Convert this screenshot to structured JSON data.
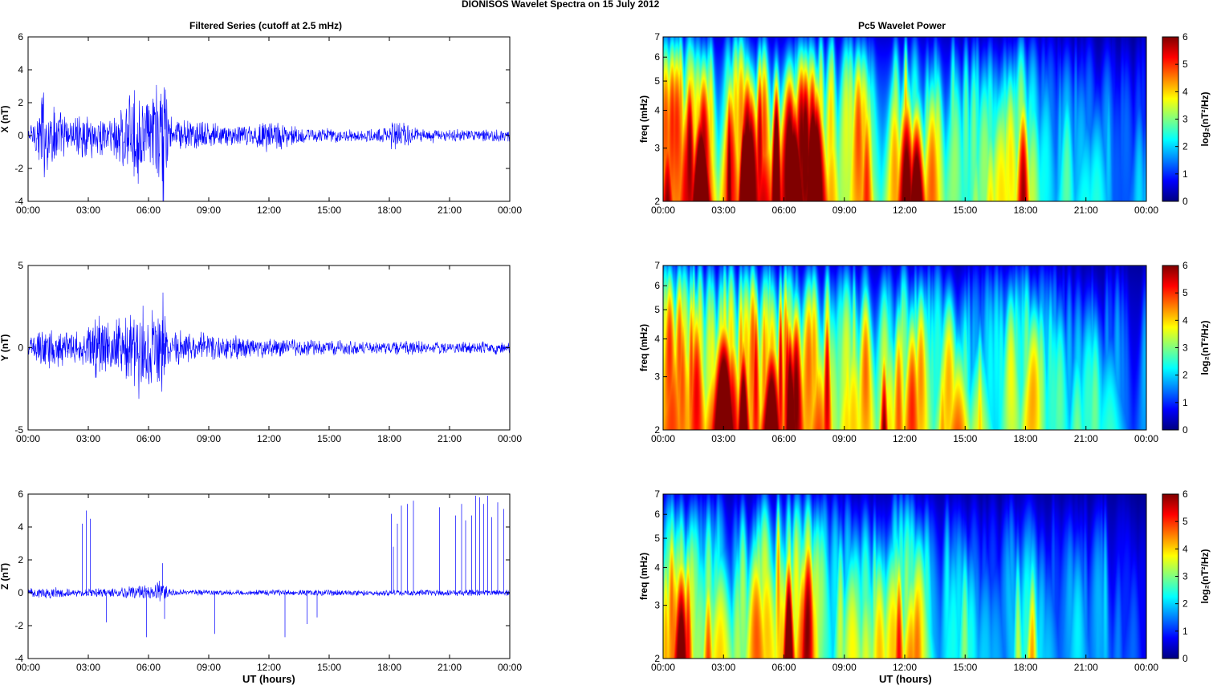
{
  "figure": {
    "title": "DIONISOS Wavelet Spectra on 15 July      2012",
    "left_title": "Filtered Series (cutoff at 2.5 mHz)",
    "right_title": "Pc5 Wavelet Power",
    "xlabel": "UT (hours)",
    "colorbar_label": "log₂(nT²/Hz)",
    "colorbar_ticks": [
      "0",
      "1",
      "2",
      "3",
      "4",
      "5",
      "6"
    ],
    "freq_ylabel": "freq (mHz)",
    "freq_ticks": [
      "2",
      "3",
      "4",
      "5",
      "6",
      "7"
    ],
    "time_ticks": [
      "00:00",
      "03:00",
      "06:00",
      "09:00",
      "12:00",
      "15:00",
      "18:00",
      "21:00",
      "00:00"
    ]
  },
  "colors": {
    "line": "#0000ff",
    "axes": "#000000"
  },
  "chart_data": [
    {
      "type": "line",
      "ylabel": "X (nT)",
      "xlim": [
        0,
        24
      ],
      "ylim": [
        -4,
        6
      ],
      "yticks": [
        "-4",
        "-2",
        "0",
        "2",
        "4",
        "6"
      ],
      "series": [
        {
          "x": [
            0,
            0.5,
            0.75,
            1,
            1.5,
            2,
            3,
            3.5,
            4,
            4.5,
            5,
            5.5,
            6,
            6.5,
            6.75,
            7,
            8,
            9,
            10,
            11,
            12,
            13,
            14,
            15,
            16,
            17,
            18,
            18.3,
            18.5,
            19,
            20,
            21,
            22,
            23,
            24
          ],
          "amplitude": [
            0.5,
            1.8,
            3.7,
            2.5,
            1.8,
            1.2,
            1.5,
            1.4,
            1.1,
            2.0,
            2.6,
            3.1,
            2.4,
            3.8,
            5.7,
            1.4,
            1.0,
            0.9,
            0.7,
            0.7,
            1.2,
            0.7,
            0.5,
            0.5,
            0.4,
            0.4,
            0.6,
            1.5,
            1.3,
            0.7,
            0.5,
            0.4,
            0.4,
            0.4,
            0.4
          ]
        }
      ]
    },
    {
      "type": "line",
      "ylabel": "Y (nT)",
      "xlim": [
        0,
        24
      ],
      "ylim": [
        -5,
        5
      ],
      "yticks": [
        "-5",
        "0",
        "5"
      ],
      "series": [
        {
          "x": [
            0,
            0.5,
            1,
            1.5,
            2,
            3,
            3.5,
            4,
            4.5,
            5,
            5.5,
            6,
            6.5,
            6.75,
            7,
            8,
            9,
            10,
            11,
            12,
            13,
            14,
            15,
            16,
            17,
            18,
            19,
            20,
            21,
            22,
            23,
            24
          ],
          "amplitude": [
            0.6,
            1.1,
            1.5,
            1.3,
            1.2,
            1.3,
            2.5,
            1.6,
            1.9,
            2.8,
            3.3,
            2.5,
            2.6,
            4.7,
            1.2,
            1.2,
            0.9,
            0.8,
            0.7,
            0.7,
            0.6,
            0.5,
            0.5,
            0.5,
            0.4,
            0.5,
            0.5,
            0.4,
            0.4,
            0.4,
            0.4,
            0.5
          ]
        }
      ]
    },
    {
      "type": "line",
      "ylabel": "Z (nT)",
      "xlim": [
        0,
        24
      ],
      "ylim": [
        -4,
        6
      ],
      "yticks": [
        "-4",
        "-2",
        "0",
        "2",
        "4",
        "6"
      ],
      "series": [
        {
          "x": [
            0,
            1,
            2,
            3,
            4,
            5,
            6,
            6.5,
            7,
            8,
            9,
            10,
            12,
            14,
            16,
            18,
            20,
            22,
            24
          ],
          "amplitude": [
            0.3,
            0.4,
            0.3,
            0.3,
            0.3,
            0.4,
            0.5,
            0.9,
            0.3,
            0.2,
            0.2,
            0.2,
            0.2,
            0.2,
            0.2,
            0.2,
            0.2,
            0.2,
            0.2
          ],
          "spikes": [
            [
              2.7,
              4.2
            ],
            [
              2.9,
              5.0
            ],
            [
              3.1,
              4.5
            ],
            [
              3.9,
              -1.8
            ],
            [
              5.9,
              -2.7
            ],
            [
              6.7,
              1.8
            ],
            [
              6.8,
              -1.6
            ],
            [
              9.3,
              -2.5
            ],
            [
              12.8,
              -2.7
            ],
            [
              13.9,
              -1.9
            ],
            [
              14.4,
              -1.5
            ],
            [
              18.1,
              4.8
            ],
            [
              18.2,
              2.8
            ],
            [
              18.4,
              4.2
            ],
            [
              18.6,
              5.3
            ],
            [
              18.9,
              5.4
            ],
            [
              19.2,
              5.6
            ],
            [
              20.5,
              5.2
            ],
            [
              21.3,
              4.7
            ],
            [
              21.6,
              5.4
            ],
            [
              21.8,
              4.4
            ],
            [
              22.1,
              4.7
            ],
            [
              22.3,
              5.9
            ],
            [
              22.5,
              5.8
            ],
            [
              22.7,
              5.4
            ],
            [
              22.9,
              5.9
            ],
            [
              23.1,
              4.6
            ],
            [
              23.4,
              5.5
            ],
            [
              23.7,
              5.1
            ]
          ]
        }
      ]
    },
    {
      "type": "heatmap",
      "xlim": [
        0,
        24
      ],
      "ylim": [
        2,
        7
      ],
      "yscale": "log",
      "clim": [
        0,
        6
      ],
      "colormap": "jet",
      "x": [
        0,
        1,
        2,
        3,
        4,
        5,
        6,
        7,
        8,
        9,
        10,
        11,
        12,
        13,
        14,
        15,
        16,
        17,
        18,
        19,
        20,
        21,
        22,
        23,
        24
      ],
      "power_level": [
        6,
        6,
        5.6,
        5.4,
        6,
        5.9,
        5.6,
        6,
        5.5,
        5,
        5.1,
        4.9,
        5.3,
        4.9,
        4.4,
        3.4,
        3.1,
        3.6,
        4.6,
        3.0,
        2.4,
        2.0,
        1.8,
        1.6,
        1.5
      ]
    },
    {
      "type": "heatmap",
      "xlim": [
        0,
        24
      ],
      "ylim": [
        2,
        7
      ],
      "yscale": "log",
      "clim": [
        0,
        6
      ],
      "colormap": "jet",
      "x": [
        0,
        1,
        2,
        3,
        4,
        5,
        6,
        7,
        8,
        9,
        10,
        11,
        12,
        13,
        14,
        15,
        16,
        17,
        18,
        19,
        20,
        21,
        22,
        23,
        24
      ],
      "power_level": [
        6,
        5.6,
        5.5,
        5.8,
        6,
        6,
        5.5,
        5.4,
        5.0,
        4.5,
        4.4,
        4.6,
        4.6,
        4.3,
        3.9,
        3.4,
        3.0,
        3.3,
        3.9,
        2.8,
        2.5,
        2.5,
        2.0,
        2.2,
        1.8
      ]
    },
    {
      "type": "heatmap",
      "xlim": [
        0,
        24
      ],
      "ylim": [
        2,
        7
      ],
      "yscale": "log",
      "clim": [
        0,
        6
      ],
      "colormap": "jet",
      "x": [
        0,
        1,
        2,
        3,
        4,
        5,
        6,
        7,
        8,
        9,
        10,
        11,
        12,
        13,
        14,
        15,
        16,
        17,
        18,
        19,
        20,
        21,
        22,
        23,
        24
      ],
      "power_level": [
        4.6,
        4.9,
        3.8,
        3.4,
        3.6,
        4.3,
        5.3,
        5.4,
        3.2,
        2.9,
        3.1,
        3.6,
        3.9,
        3.1,
        2.7,
        2.4,
        1.6,
        1.6,
        4.0,
        2.1,
        1.8,
        1.7,
        2.2,
        1.3,
        0.8
      ]
    }
  ]
}
